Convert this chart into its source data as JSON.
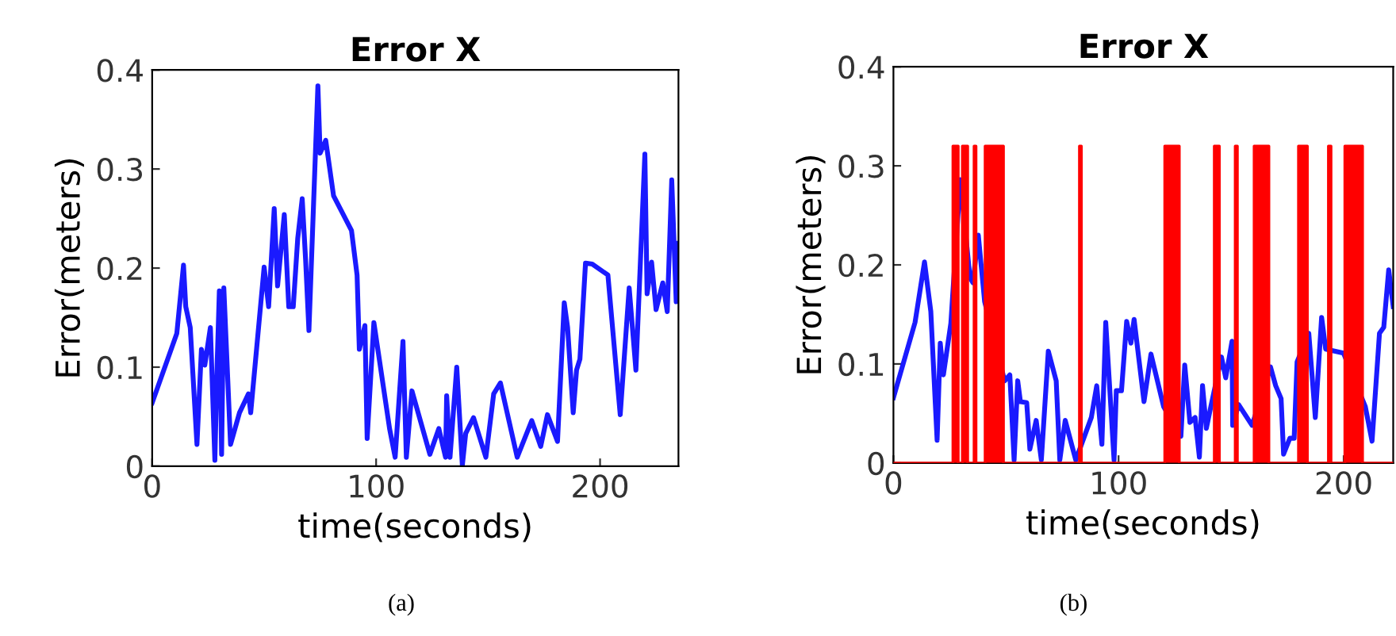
{
  "chart_data": [
    {
      "type": "line",
      "title": "Error X",
      "xlabel": "time(seconds)",
      "ylabel": "Error(meters)",
      "annotations": [
        "(a)"
      ],
      "xlim": [
        0,
        235
      ],
      "xticks": [
        0,
        100,
        200
      ],
      "ylim": [
        0,
        0.4
      ],
      "yticks": [
        0,
        0.1,
        0.2,
        0.3,
        0.4
      ],
      "grid": false,
      "legend": false,
      "series": [
        {
          "color": "#1a1aff",
          "x": [
            0,
            11,
            14,
            15,
            17,
            20,
            22,
            23.5,
            26,
            28,
            29,
            30,
            31,
            32,
            35,
            39,
            43,
            44,
            50,
            52,
            54.5,
            56,
            59,
            61,
            63,
            65,
            67,
            68.5,
            70,
            74,
            75,
            77.5,
            81,
            89,
            91.5,
            92.5,
            95,
            96,
            99,
            106,
            108.5,
            112,
            113.5,
            116,
            124,
            128,
            131,
            131.5,
            133,
            136,
            138.5,
            140,
            143.5,
            149,
            152.5,
            155.5,
            163,
            169.5,
            173.5,
            176.5,
            181,
            184,
            185.5,
            188,
            189.5,
            191,
            193.5,
            196.5,
            203.5,
            209,
            213,
            216,
            220,
            221,
            223,
            225,
            228,
            230,
            232,
            234,
            234.5
          ],
          "values": [
            0.064,
            0.134,
            0.203,
            0.161,
            0.14,
            0.022,
            0.118,
            0.102,
            0.14,
            0.006,
            0.102,
            0.177,
            0.012,
            0.18,
            0.022,
            0.054,
            0.073,
            0.054,
            0.201,
            0.161,
            0.26,
            0.182,
            0.254,
            0.161,
            0.161,
            0.23,
            0.27,
            0.209,
            0.137,
            0.384,
            0.316,
            0.329,
            0.273,
            0.238,
            0.193,
            0.118,
            0.142,
            0.028,
            0.145,
            0.038,
            0.009,
            0.126,
            0.009,
            0.076,
            0.012,
            0.038,
            0.009,
            0.071,
            0.009,
            0.1,
            0.001,
            0.033,
            0.049,
            0.009,
            0.073,
            0.084,
            0.009,
            0.046,
            0.02,
            0.052,
            0.025,
            0.165,
            0.14,
            0.054,
            0.097,
            0.108,
            0.205,
            0.204,
            0.193,
            0.052,
            0.18,
            0.097,
            0.315,
            0.174,
            0.206,
            0.158,
            0.185,
            0.156,
            0.289,
            0.166,
            0.225
          ]
        }
      ]
    },
    {
      "type": "line",
      "title": "Error X",
      "xlabel": "time(seconds)",
      "ylabel": "Error(meters)",
      "annotations": [
        "(b)"
      ],
      "xlim": [
        0,
        222
      ],
      "xticks": [
        0,
        100,
        200
      ],
      "ylim": [
        0,
        0.4
      ],
      "yticks": [
        0,
        0.1,
        0.2,
        0.3,
        0.4
      ],
      "grid": false,
      "legend": false,
      "series": [
        {
          "color": "#1a1aff",
          "x": [
            0,
            9.6,
            13.8,
            16.6,
            19.4,
            20.8,
            22.2,
            25.5,
            29.7,
            34,
            35.3,
            37.7,
            40.5,
            49.4,
            51.7,
            53.6,
            55.2,
            56.4,
            59.2,
            60.6,
            63.4,
            65.7,
            68.8,
            72.3,
            73.9,
            76.3,
            81,
            87.9,
            90.3,
            92.6,
            94.3,
            98,
            99,
            101.3,
            103.6,
            105.5,
            106.9,
            111.3,
            114.4,
            120,
            127.7,
            129.4,
            131.7,
            134,
            135.9,
            137.3,
            139,
            141,
            145.7,
            147.6,
            150.4,
            150.7,
            153.3,
            159.3,
            167.5,
            169.8,
            172.2,
            173.3,
            176.1,
            178,
            179.3,
            184.5,
            187.4,
            190.2,
            192,
            199.9,
            209.6,
            212.6,
            215.9,
            217.8,
            220,
            222
          ],
          "values": [
            0.066,
            0.142,
            0.203,
            0.153,
            0.023,
            0.121,
            0.089,
            0.141,
            0.286,
            0.187,
            0.182,
            0.23,
            0.163,
            0.083,
            0.089,
            0.003,
            0.083,
            0.062,
            0.061,
            0.014,
            0.043,
            0.003,
            0.113,
            0.083,
            0.003,
            0.043,
            0.003,
            0.046,
            0.078,
            0.019,
            0.142,
            0.003,
            0.073,
            0.073,
            0.143,
            0.121,
            0.145,
            0.062,
            0.11,
            0.057,
            0.027,
            0.099,
            0.041,
            0.046,
            0.006,
            0.078,
            0.035,
            0.057,
            0.107,
            0.086,
            0.123,
            0.038,
            0.059,
            0.038,
            0.097,
            0.078,
            0.065,
            0.009,
            0.025,
            0.025,
            0.102,
            0.131,
            0.046,
            0.147,
            0.115,
            0.111,
            0.057,
            0.022,
            0.131,
            0.137,
            0.195,
            0.158
          ]
        },
        {
          "type": "area",
          "color": "#ff0000",
          "x": [
            0,
            26.4,
            26.4,
            28.8,
            28.8,
            30.6,
            30.6,
            33,
            33,
            35.8,
            35.8,
            36.7,
            36.7,
            40.7,
            40.7,
            48.9,
            48.9,
            82.6,
            82.6,
            83.5,
            83.5,
            120.5,
            120.5,
            127,
            127,
            142.5,
            142.5,
            144.8,
            144.8,
            151.8,
            151.8,
            152.8,
            152.8,
            160.2,
            160.2,
            166.8,
            166.8,
            179.9,
            179.9,
            183.9,
            183.9,
            193.2,
            193.2,
            194.4,
            194.4,
            200.5,
            200.5,
            208.4,
            208.4,
            222
          ],
          "values": [
            0,
            0,
            0.32,
            0.32,
            0,
            0,
            0.32,
            0.32,
            0,
            0,
            0.32,
            0.32,
            0,
            0,
            0.32,
            0.32,
            0,
            0,
            0.32,
            0.32,
            0,
            0,
            0.32,
            0.32,
            0,
            0,
            0.32,
            0.32,
            0,
            0,
            0.32,
            0.32,
            0,
            0,
            0.32,
            0.32,
            0,
            0,
            0.32,
            0.32,
            0,
            0,
            0.32,
            0.32,
            0,
            0,
            0.32,
            0.32,
            0,
            0
          ]
        }
      ]
    }
  ]
}
